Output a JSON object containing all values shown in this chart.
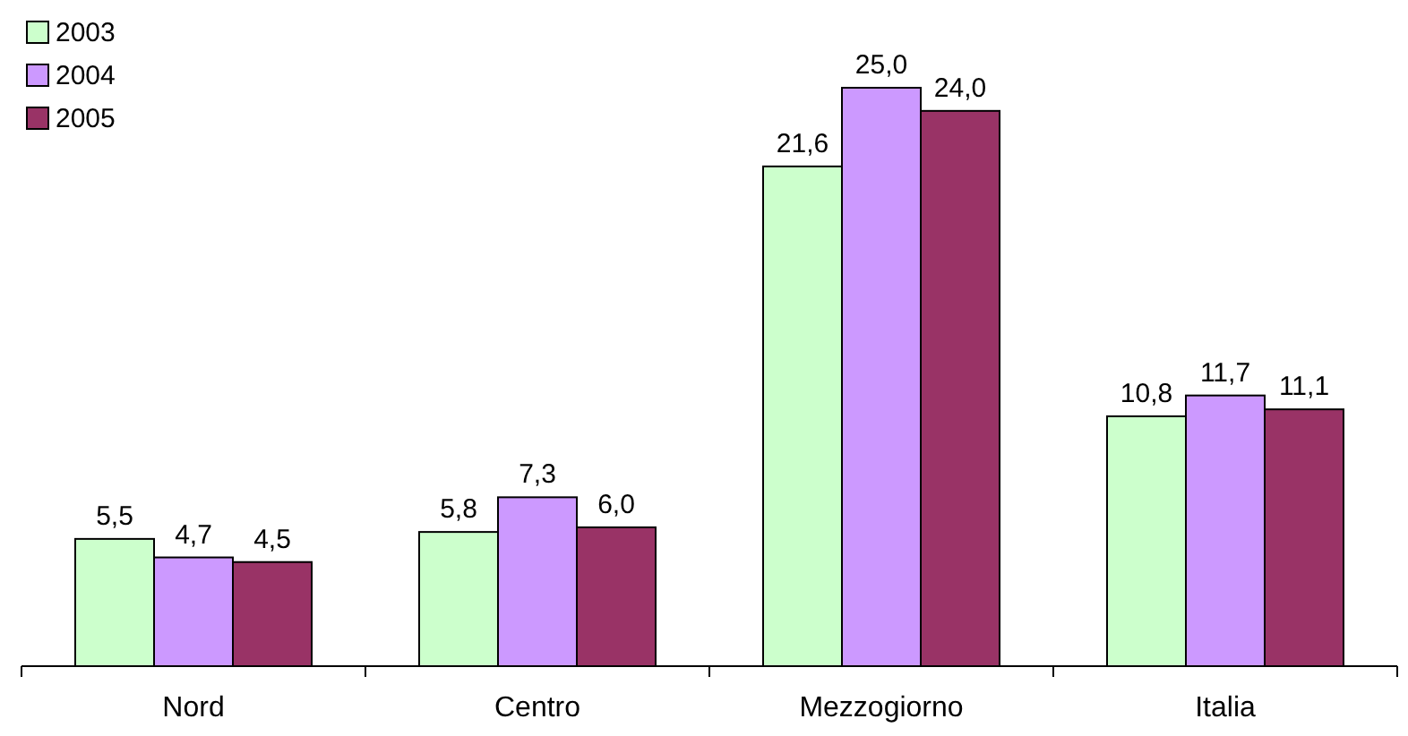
{
  "chart_data": {
    "type": "bar",
    "categories": [
      "Nord",
      "Centro",
      "Mezzogiorno",
      "Italia"
    ],
    "legend": "top left",
    "series": [
      {
        "name": "2003",
        "color": "#ccffcc",
        "values": [
          5.5,
          5.8,
          21.6,
          10.8
        ],
        "value_labels": [
          "5,5",
          "5,8",
          "21,6",
          "10,8"
        ]
      },
      {
        "name": "2004",
        "color": "#cc99ff",
        "values": [
          4.7,
          7.3,
          25.0,
          11.7
        ],
        "value_labels": [
          "4,7",
          "7,3",
          "25,0",
          "11,7"
        ]
      },
      {
        "name": "2005",
        "color": "#993366",
        "values": [
          4.5,
          6.0,
          24.0,
          11.1
        ],
        "value_labels": [
          "4,5",
          "6,0",
          "24,0",
          "11,1"
        ]
      }
    ]
  }
}
